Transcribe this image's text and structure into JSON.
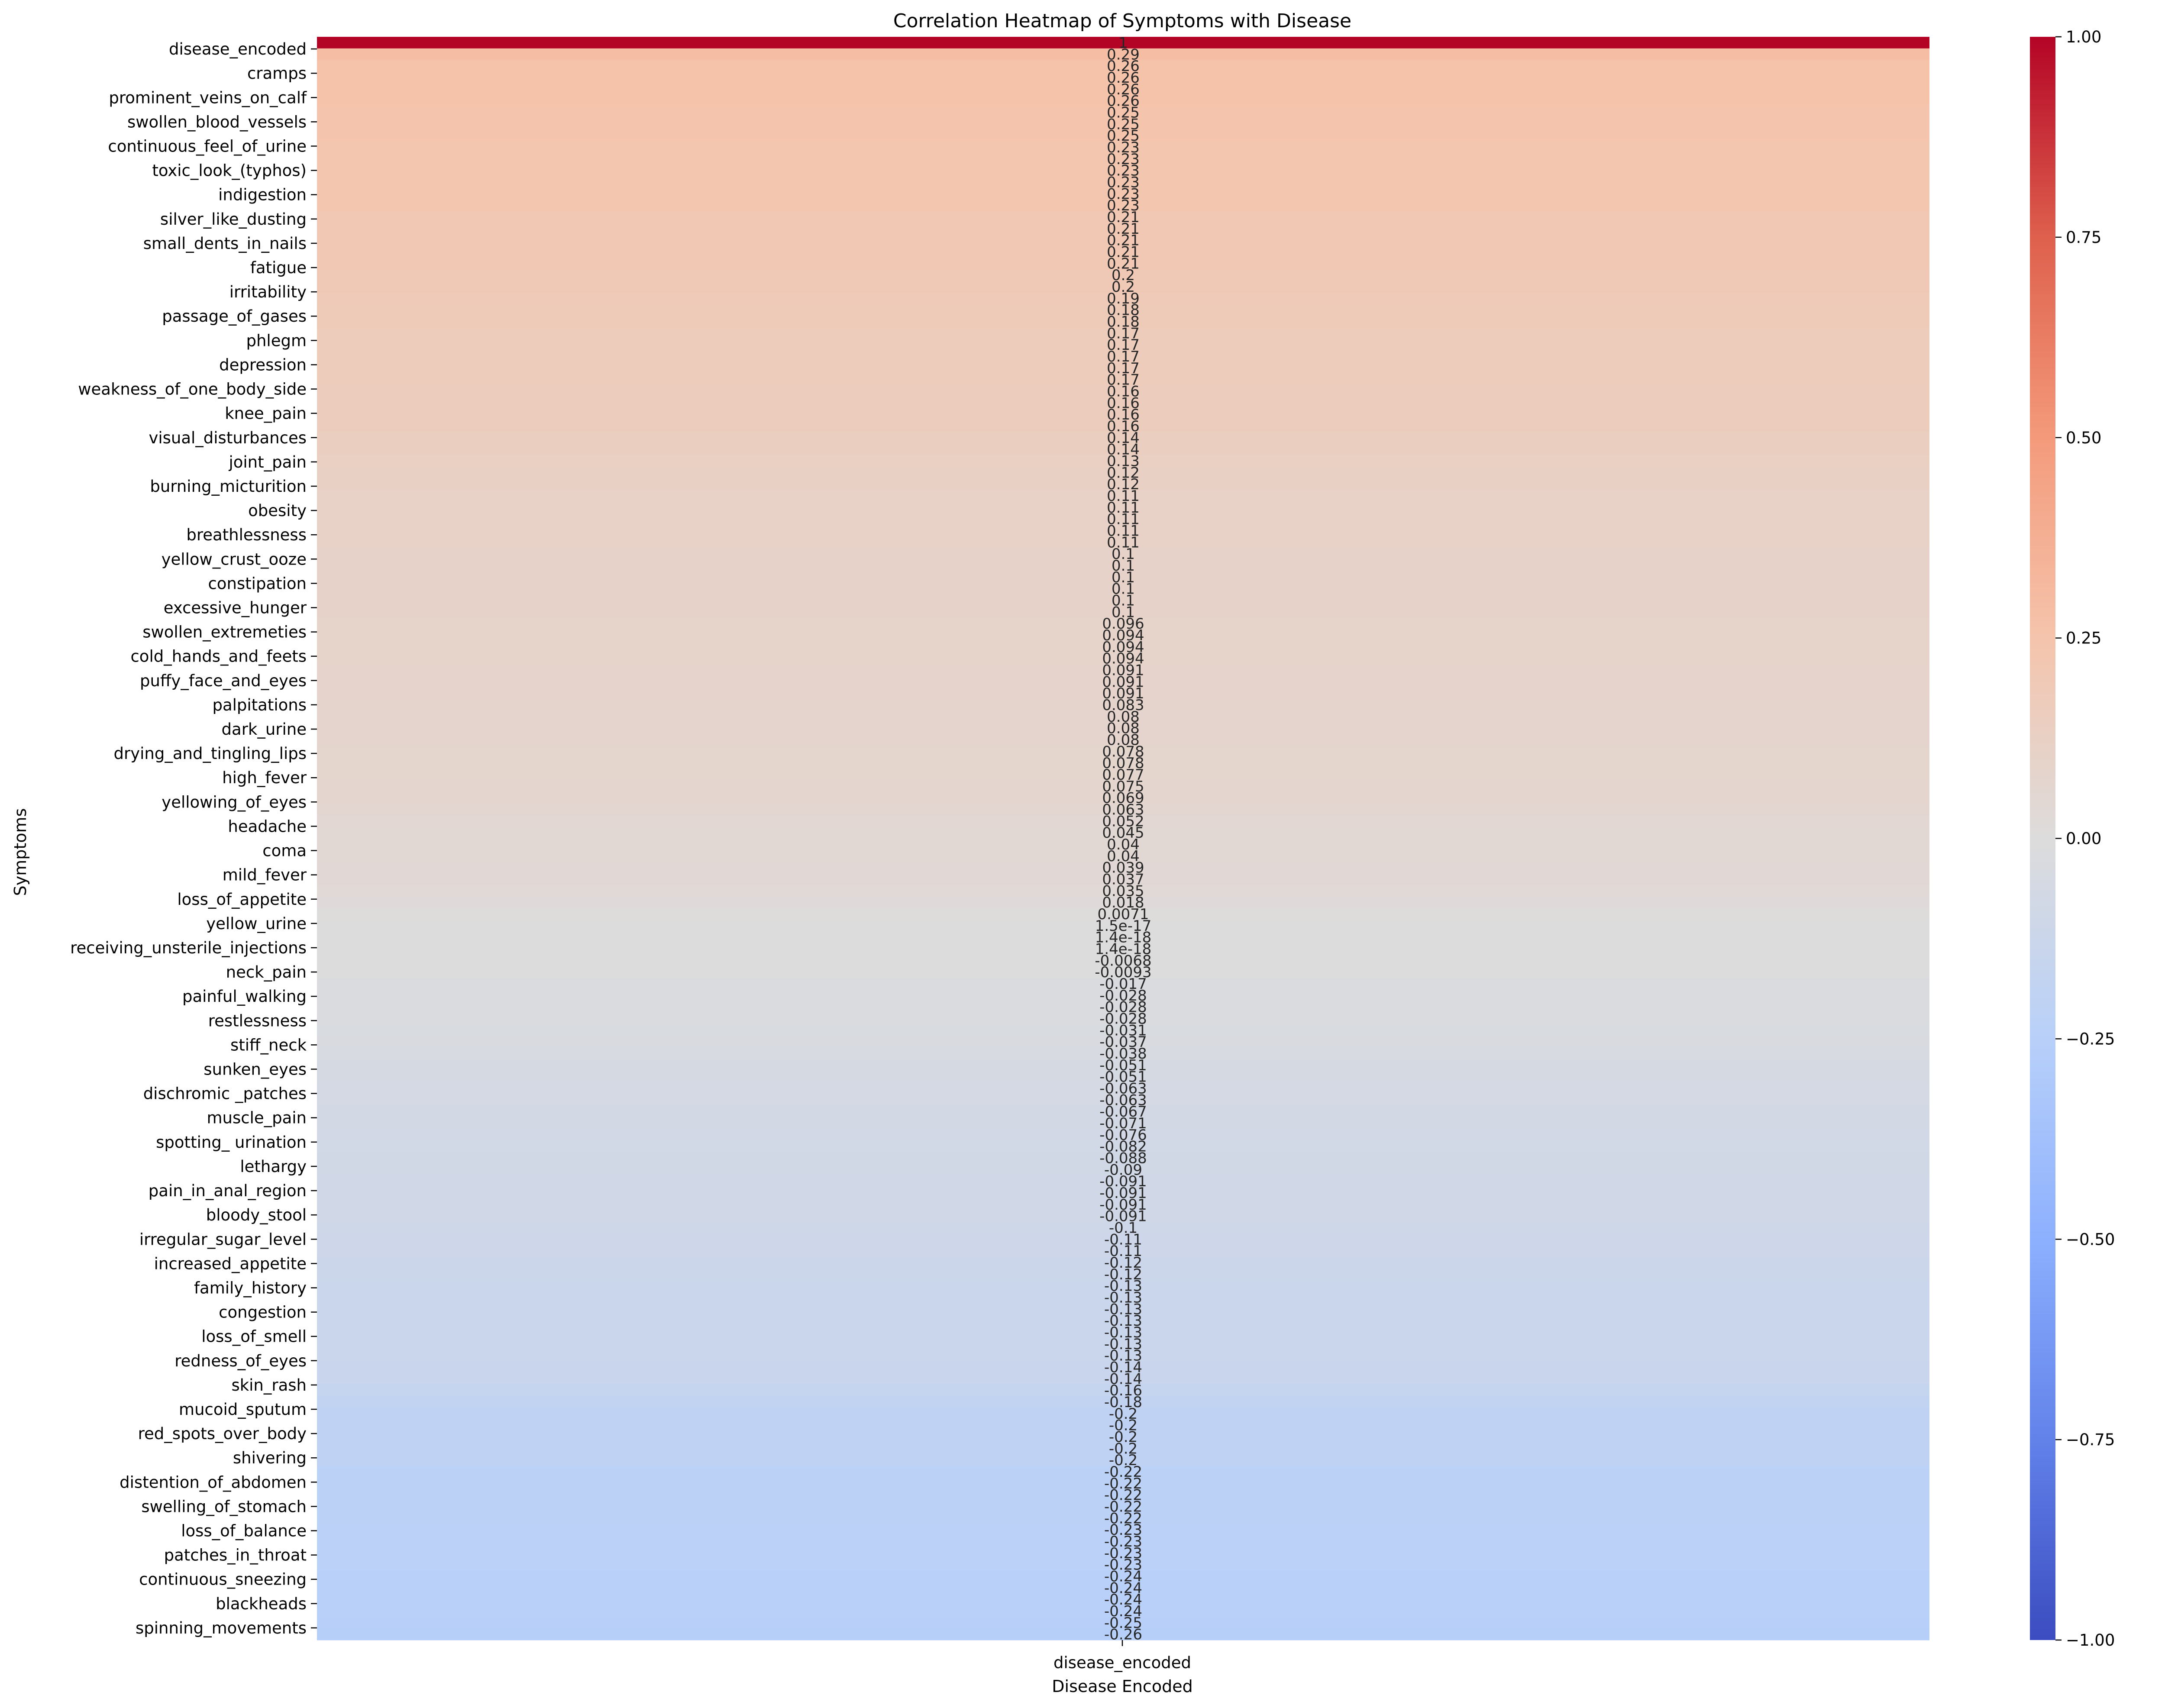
{
  "chart_data": {
    "type": "heatmap",
    "title": "Correlation Heatmap of Symptoms with Disease",
    "xlabel": "Disease Encoded",
    "ylabel": "Symptoms",
    "columns": [
      "disease_encoded"
    ],
    "row_tick_labels": [
      "disease_encoded",
      "cramps",
      "prominent_veins_on_calf",
      "swollen_blood_vessels",
      "continuous_feel_of_urine",
      "toxic_look_(typhos)",
      "indigestion",
      "silver_like_dusting",
      "small_dents_in_nails",
      "fatigue",
      "irritability",
      "passage_of_gases",
      "phlegm",
      "depression",
      "weakness_of_one_body_side",
      "knee_pain",
      "visual_disturbances",
      "joint_pain",
      "burning_micturition",
      "obesity",
      "breathlessness",
      "yellow_crust_ooze",
      "constipation",
      "excessive_hunger",
      "swollen_extremeties",
      "cold_hands_and_feets",
      "puffy_face_and_eyes",
      "palpitations",
      "dark_urine",
      "drying_and_tingling_lips",
      "high_fever",
      "yellowing_of_eyes",
      "headache",
      "coma",
      "mild_fever",
      "loss_of_appetite",
      "yellow_urine",
      "receiving_unsterile_injections",
      "neck_pain",
      "painful_walking",
      "restlessness",
      "stiff_neck",
      "sunken_eyes",
      "dischromic _patches",
      "muscle_pain",
      "spotting_ urination",
      "lethargy",
      "pain_in_anal_region",
      "bloody_stool",
      "irregular_sugar_level",
      "increased_appetite",
      "family_history",
      "congestion",
      "loss_of_smell",
      "redness_of_eyes",
      "skin_rash",
      "mucoid_sputum",
      "red_spots_over_body",
      "shivering",
      "distention_of_abdomen",
      "swelling_of_stomach",
      "loss_of_balance",
      "patches_in_throat",
      "continuous_sneezing",
      "blackheads",
      "spinning_movements"
    ],
    "values": [
      1,
      0.29,
      0.26,
      0.26,
      0.26,
      0.26,
      0.25,
      0.25,
      0.25,
      0.23,
      0.23,
      0.23,
      0.23,
      0.23,
      0.23,
      0.21,
      0.21,
      0.21,
      0.21,
      0.21,
      0.2,
      0.2,
      0.19,
      0.18,
      0.18,
      0.17,
      0.17,
      0.17,
      0.17,
      0.17,
      0.16,
      0.16,
      0.16,
      0.16,
      0.14,
      0.14,
      0.13,
      0.12,
      0.12,
      0.11,
      0.11,
      0.11,
      0.11,
      0.11,
      0.1,
      0.1,
      0.1,
      0.1,
      0.1,
      0.1,
      0.096,
      0.094,
      0.094,
      0.094,
      0.091,
      0.091,
      0.091,
      0.083,
      0.08,
      0.08,
      0.08,
      0.078,
      0.078,
      0.077,
      0.075,
      0.069,
      0.063,
      0.052,
      0.045,
      0.04,
      0.04,
      0.039,
      0.037,
      0.035,
      0.018,
      0.0071,
      1.5e-17,
      1.4e-18,
      1.4e-18,
      -0.0068,
      -0.0093,
      -0.017,
      -0.028,
      -0.028,
      -0.028,
      -0.031,
      -0.037,
      -0.038,
      -0.051,
      -0.051,
      -0.063,
      -0.063,
      -0.067,
      -0.071,
      -0.076,
      -0.082,
      -0.088,
      -0.09,
      -0.091,
      -0.091,
      -0.091,
      -0.091,
      -0.1,
      -0.11,
      -0.11,
      -0.12,
      -0.12,
      -0.13,
      -0.13,
      -0.13,
      -0.13,
      -0.13,
      -0.13,
      -0.13,
      -0.14,
      -0.14,
      -0.16,
      -0.18,
      -0.2,
      -0.2,
      -0.2,
      -0.2,
      -0.2,
      -0.22,
      -0.22,
      -0.22,
      -0.22,
      -0.22,
      -0.23,
      -0.23,
      -0.23,
      -0.23,
      -0.24,
      -0.24,
      -0.24,
      -0.24,
      -0.25,
      -0.26
    ],
    "value_labels": [
      "1",
      "0.29",
      "0.26",
      "0.26",
      "0.26",
      "0.26",
      "0.25",
      "0.25",
      "0.25",
      "0.23",
      "0.23",
      "0.23",
      "0.23",
      "0.23",
      "0.23",
      "0.21",
      "0.21",
      "0.21",
      "0.21",
      "0.21",
      "0.2",
      "0.2",
      "0.19",
      "0.18",
      "0.18",
      "0.17",
      "0.17",
      "0.17",
      "0.17",
      "0.17",
      "0.16",
      "0.16",
      "0.16",
      "0.16",
      "0.14",
      "0.14",
      "0.13",
      "0.12",
      "0.12",
      "0.11",
      "0.11",
      "0.11",
      "0.11",
      "0.11",
      "0.1",
      "0.1",
      "0.1",
      "0.1",
      "0.1",
      "0.1",
      "0.096",
      "0.094",
      "0.094",
      "0.094",
      "0.091",
      "0.091",
      "0.091",
      "0.083",
      "0.08",
      "0.08",
      "0.08",
      "0.078",
      "0.078",
      "0.077",
      "0.075",
      "0.069",
      "0.063",
      "0.052",
      "0.045",
      "0.04",
      "0.04",
      "0.039",
      "0.037",
      "0.035",
      "0.018",
      "0.0071",
      "1.5e-17",
      "1.4e-18",
      "1.4e-18",
      "-0.0068",
      "-0.0093",
      "-0.017",
      "-0.028",
      "-0.028",
      "-0.028",
      "-0.031",
      "-0.037",
      "-0.038",
      "-0.051",
      "-0.051",
      "-0.063",
      "-0.063",
      "-0.067",
      "-0.071",
      "-0.076",
      "-0.082",
      "-0.088",
      "-0.09",
      "-0.091",
      "-0.091",
      "-0.091",
      "-0.091",
      "-0.1",
      "-0.11",
      "-0.11",
      "-0.12",
      "-0.12",
      "-0.13",
      "-0.13",
      "-0.13",
      "-0.13",
      "-0.13",
      "-0.13",
      "-0.13",
      "-0.14",
      "-0.14",
      "-0.16",
      "-0.18",
      "-0.2",
      "-0.2",
      "-0.2",
      "-0.2",
      "-0.2",
      "-0.22",
      "-0.22",
      "-0.22",
      "-0.22",
      "-0.22",
      "-0.23",
      "-0.23",
      "-0.23",
      "-0.23",
      "-0.24",
      "-0.24",
      "-0.24",
      "-0.24",
      "-0.25",
      "-0.26"
    ],
    "colorbar": {
      "colormap": "coolwarm",
      "range": [
        -1,
        1
      ],
      "ticks": [
        1.0,
        0.75,
        0.5,
        0.25,
        0.0,
        -0.25,
        -0.5,
        -0.75,
        -1.0
      ],
      "tick_labels": [
        "1.00",
        "0.75",
        "0.50",
        "0.25",
        "0.00",
        "−0.25",
        "−0.50",
        "−0.75",
        "−1.00"
      ]
    }
  }
}
